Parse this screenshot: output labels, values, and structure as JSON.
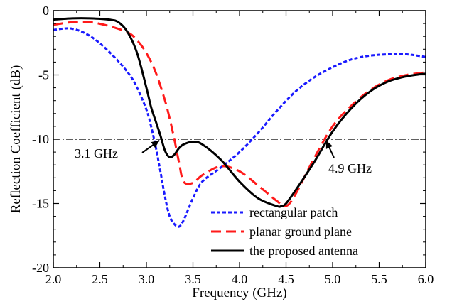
{
  "chart_data": {
    "type": "line",
    "title": "",
    "xlabel": "Frequency (GHz)",
    "ylabel": "Reflection Coefficient (dB)",
    "xlim": [
      2.0,
      6.0
    ],
    "ylim": [
      -20,
      0
    ],
    "x_ticks": [
      2.0,
      2.5,
      3.0,
      3.5,
      4.0,
      4.5,
      5.0,
      5.5,
      6.0
    ],
    "x_tick_labels": [
      "2.0",
      "2.5",
      "3.0",
      "3.5",
      "4.0",
      "4.5",
      "5.0",
      "5.5",
      "6.0"
    ],
    "y_ticks": [
      0,
      -5,
      -10,
      -15,
      -20
    ],
    "y_tick_labels": [
      "0",
      "-5",
      "-10",
      "-15",
      "-20"
    ],
    "grid": false,
    "legend_position": "bottom-right",
    "reference_line": {
      "y": -10,
      "style": "dash-dot"
    },
    "annotations": [
      {
        "text": "3.1 GHz",
        "x": 3.1,
        "y": -10
      },
      {
        "text": "4.9 GHz",
        "x": 4.9,
        "y": -10
      }
    ],
    "series": [
      {
        "name": "rectangular patch",
        "color": "#1a1aff",
        "style": "dotted",
        "x": [
          2.0,
          2.2,
          2.4,
          2.6,
          2.8,
          2.9,
          3.0,
          3.05,
          3.1,
          3.15,
          3.2,
          3.25,
          3.3,
          3.35,
          3.4,
          3.5,
          3.6,
          3.8,
          4.0,
          4.2,
          4.4,
          4.6,
          4.8,
          5.0,
          5.2,
          5.4,
          5.6,
          5.8,
          6.0
        ],
        "y": [
          -1.5,
          -1.4,
          -2.0,
          -3.2,
          -4.8,
          -6.0,
          -7.7,
          -9.0,
          -10.6,
          -12.5,
          -14.5,
          -16.0,
          -16.6,
          -16.8,
          -16.3,
          -14.6,
          -13.3,
          -12.2,
          -11.0,
          -9.5,
          -7.8,
          -6.3,
          -5.2,
          -4.4,
          -3.8,
          -3.5,
          -3.4,
          -3.4,
          -3.6
        ]
      },
      {
        "name": "planar ground plane",
        "color": "#ff1a1a",
        "style": "dashed",
        "x": [
          2.0,
          2.2,
          2.4,
          2.6,
          2.8,
          2.9,
          3.0,
          3.1,
          3.2,
          3.25,
          3.3,
          3.35,
          3.4,
          3.5,
          3.6,
          3.8,
          4.0,
          4.2,
          4.4,
          4.5,
          4.6,
          4.8,
          5.0,
          5.2,
          5.4,
          5.6,
          5.8,
          6.0
        ],
        "y": [
          -1.1,
          -0.9,
          -0.9,
          -1.2,
          -1.7,
          -2.3,
          -3.3,
          -4.8,
          -7.0,
          -8.4,
          -10.0,
          -11.8,
          -13.3,
          -13.4,
          -12.8,
          -12.1,
          -12.5,
          -13.6,
          -14.8,
          -15.2,
          -14.3,
          -11.5,
          -9.0,
          -7.4,
          -6.2,
          -5.4,
          -5.0,
          -4.8
        ]
      },
      {
        "name": "the proposed antenna",
        "color": "#000000",
        "style": "solid",
        "x": [
          2.0,
          2.2,
          2.4,
          2.6,
          2.7,
          2.8,
          2.9,
          3.0,
          3.05,
          3.1,
          3.15,
          3.2,
          3.25,
          3.3,
          3.35,
          3.4,
          3.5,
          3.6,
          3.8,
          4.0,
          4.2,
          4.4,
          4.45,
          4.5,
          4.6,
          4.8,
          5.0,
          5.2,
          5.4,
          5.6,
          5.8,
          6.0
        ],
        "y": [
          -0.7,
          -0.6,
          -0.6,
          -0.7,
          -0.9,
          -1.7,
          -3.3,
          -6.0,
          -7.5,
          -8.6,
          -9.7,
          -10.9,
          -11.4,
          -11.2,
          -10.7,
          -10.4,
          -10.2,
          -10.4,
          -11.6,
          -13.3,
          -14.6,
          -15.2,
          -15.2,
          -15.0,
          -14.0,
          -11.8,
          -9.4,
          -7.6,
          -6.3,
          -5.5,
          -5.1,
          -4.9
        ]
      }
    ]
  }
}
